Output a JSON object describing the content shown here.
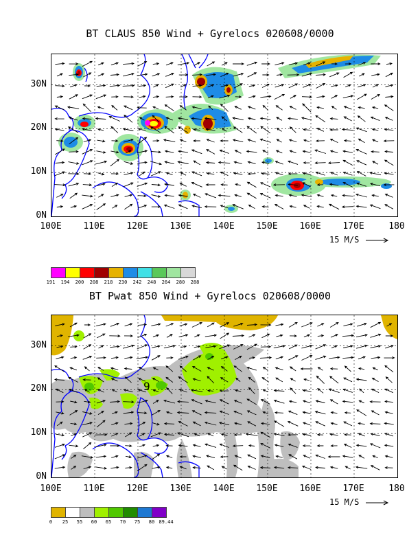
{
  "panels": [
    {
      "title": "BT CLAUS 850 Wind + Gyrelocs 020608/0000",
      "x_ticks": [
        "100E",
        "110E",
        "120E",
        "130E",
        "140E",
        "150E",
        "160E",
        "170E",
        "180"
      ],
      "y_ticks": [
        "30N",
        "20N",
        "10N",
        "0N"
      ],
      "ref_vector": "15 M/S",
      "legend": {
        "labels": [
          "191",
          "194",
          "200",
          "208",
          "218",
          "230",
          "242",
          "248",
          "264",
          "280",
          "288"
        ],
        "colors": [
          "#ff00ff",
          "#ffff00",
          "#ff0000",
          "#a00000",
          "#e6b200",
          "#1e8ce6",
          "#40e0e6",
          "#5ac85a",
          "#a0e6a0",
          "#d8d8d8"
        ]
      }
    },
    {
      "title": "BT Pwat 850 Wind + Gyrelocs 020608/0000",
      "x_ticks": [
        "100E",
        "110E",
        "120E",
        "130E",
        "140E",
        "150E",
        "160E",
        "170E",
        "180"
      ],
      "y_ticks": [
        "30N",
        "20N",
        "10N",
        "0N"
      ],
      "ref_vector": "15 M/S",
      "marker": "9",
      "legend": {
        "labels": [
          "0",
          "25",
          "55",
          "60",
          "65",
          "70",
          "75",
          "80",
          "89.44"
        ],
        "colors": [
          "#e0b400",
          "#ffffff",
          "#bebebe",
          "#a0f000",
          "#50c800",
          "#208c00",
          "#1e78d2",
          "#8000c8"
        ]
      }
    }
  ]
}
